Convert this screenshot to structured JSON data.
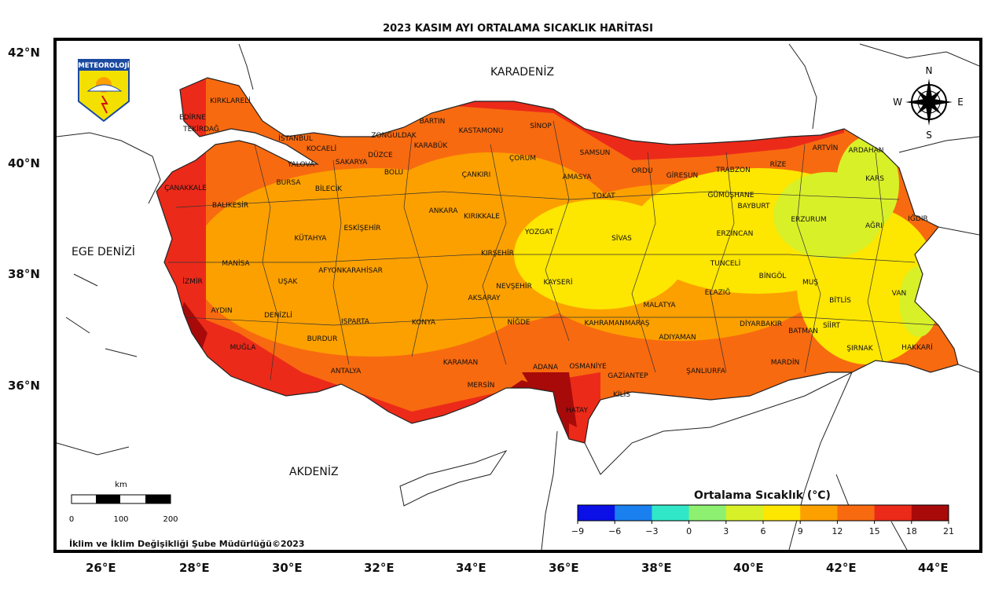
{
  "title": "2023 KASIM AYI ORTALAMA SICAKLIK HARİTASI",
  "logo": {
    "text": "METEOROLOJİ"
  },
  "seas": {
    "black_sea": "KARADENİZ",
    "aegean": "EGE DENİZİ",
    "mediterranean": "AKDENİZ"
  },
  "compass": {
    "n": "N",
    "s": "S",
    "e": "E",
    "w": "W"
  },
  "lat_labels": [
    "42°N",
    "40°N",
    "38°N",
    "36°N"
  ],
  "lon_labels": [
    "26°E",
    "28°E",
    "30°E",
    "32°E",
    "34°E",
    "36°E",
    "38°E",
    "40°E",
    "42°E",
    "44°E"
  ],
  "provinces": [
    "KIRKLARELİ",
    "EDİRNE",
    "TEKİRDAĞ",
    "İSTANBUL",
    "KOCAELİ",
    "YALOVA",
    "SAKARYA",
    "DÜZCE",
    "ZONGULDAK",
    "BARTIN",
    "KARABÜK",
    "KASTAMONU",
    "SİNOP",
    "SAMSUN",
    "ORDU",
    "GİRESUN",
    "TRABZON",
    "RİZE",
    "ARTVİN",
    "ARDAHAN",
    "KARS",
    "IĞDIR",
    "AĞRI",
    "ERZURUM",
    "BAYBURT",
    "GÜMÜŞHANE",
    "ERZİNCAN",
    "TUNCELİ",
    "BİNGÖL",
    "MUŞ",
    "BİTLİS",
    "VAN",
    "HAKKARİ",
    "ŞIRNAK",
    "SİİRT",
    "BATMAN",
    "MARDİN",
    "DİYARBAKIR",
    "ELAZIĞ",
    "MALATYA",
    "ADIYAMAN",
    "ŞANLIURFA",
    "GAZİANTEP",
    "KİLİS",
    "HATAY",
    "OSMANİYE",
    "ADANA",
    "MERSİN",
    "KARAMAN",
    "KONYA",
    "NİĞDE",
    "AKSARAY",
    "NEVŞEHİR",
    "KAYSERİ",
    "SİVAS",
    "TOKAT",
    "AMASYA",
    "ÇORUM",
    "YOZGAT",
    "KIRŞEHİR",
    "KIRIKKALE",
    "ANKARA",
    "ÇANKIRI",
    "BOLU",
    "BİLECİK",
    "BURSA",
    "BALIKESİR",
    "ÇANAKKALE",
    "KÜTAHYA",
    "ESKİŞEHİR",
    "AFYONKARAHİSAR",
    "UŞAK",
    "MANİSA",
    "İZMİR",
    "AYDIN",
    "DENİZLİ",
    "MUĞLA",
    "BURDUR",
    "ISPARTA",
    "ANTALYA",
    "KAHRAMANMARAŞ"
  ],
  "scale": {
    "unit": "km",
    "ticks": [
      "0",
      "100",
      "200"
    ]
  },
  "legend": {
    "title": "Ortalama Sıcaklık (°C)",
    "ticks": [
      "−9",
      "−6",
      "−3",
      "0",
      "3",
      "6",
      "9",
      "12",
      "15",
      "18",
      "21"
    ],
    "colors": [
      "#0a10e6",
      "#1a80f0",
      "#30e8c8",
      "#8ef070",
      "#d8f028",
      "#fde600",
      "#fca000",
      "#f86a10",
      "#ec2a1a",
      "#a80a0a"
    ]
  },
  "credit": "İklim ve İklim Değişikliği Şube Müdürlüğü©2023"
}
